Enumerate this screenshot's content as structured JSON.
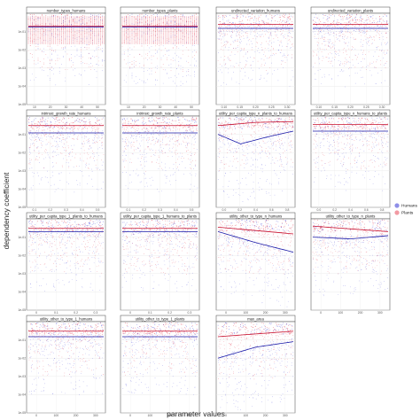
{
  "chart_data": {
    "type": "scatter",
    "title": "",
    "xlabel": "parameter values",
    "ylabel": "dependency coefficient",
    "yscale": "log",
    "ylim": [
      1e-05,
      1
    ],
    "y_ticks": [
      "1e-01",
      "1e-02",
      "1e-03",
      "1e-04",
      "1e-05"
    ],
    "grid": true,
    "legend_position": "right",
    "legend_entries": [
      {
        "name": "Humans",
        "color": "#8f8fe8"
      },
      {
        "name": "Plants",
        "color": "#f29aa3"
      }
    ],
    "colors": {
      "humans_points": "#3a3ad6",
      "plants_points": "#e0243a",
      "humans_fit": "#1a1aa8",
      "plants_fit": "#c8102e"
    },
    "panels": [
      {
        "title": "number_types_humans",
        "x_range": [
          0,
          50
        ],
        "x_ticks": [
          "10",
          "20",
          "30",
          "40",
          "50"
        ],
        "discrete": true,
        "fit": {
          "humans": [
            [
              0,
              0.18
            ],
            [
              50,
              0.18
            ]
          ],
          "plants": [
            [
              0,
              0.2
            ],
            [
              50,
              0.2
            ]
          ]
        }
      },
      {
        "title": "number_types_plants",
        "x_range": [
          0,
          50
        ],
        "x_ticks": [
          "10",
          "20",
          "30",
          "40",
          "50"
        ],
        "discrete": true,
        "fit": {
          "humans": [
            [
              0,
              0.18
            ],
            [
              50,
              0.18
            ]
          ],
          "plants": [
            [
              0,
              0.2
            ],
            [
              50,
              0.2
            ]
          ]
        }
      },
      {
        "title": "undirected_variation_humans",
        "x_range": [
          0.1,
          0.5
        ],
        "x_ticks": [
          "0.10",
          "0.15",
          "0.20",
          "0.25",
          "0.30"
        ],
        "discrete": false,
        "fit": {
          "humans": [
            [
              0.1,
              0.15
            ],
            [
              0.5,
              0.15
            ]
          ],
          "plants": [
            [
              0.1,
              0.25
            ],
            [
              0.5,
              0.25
            ]
          ]
        }
      },
      {
        "title": "undirected_variation_plants",
        "x_range": [
          0.1,
          0.5
        ],
        "x_ticks": [
          "0.10",
          "0.15",
          "0.20",
          "0.25",
          "0.30"
        ],
        "discrete": false,
        "fit": {
          "humans": [
            [
              0.1,
              0.15
            ],
            [
              0.5,
              0.15
            ]
          ],
          "plants": [
            [
              0.1,
              0.25
            ],
            [
              0.5,
              0.25
            ]
          ]
        }
      },
      {
        "title": "intrinsic_growth_rate_humans",
        "x_range": [
          0,
          1
        ],
        "x_ticks": [
          "0.1",
          "0.2",
          "0.3",
          "0.4",
          "0.5"
        ],
        "discrete": false,
        "fit": {
          "humans": [
            [
              0,
              0.12
            ],
            [
              1,
              0.12
            ]
          ],
          "plants": [
            [
              0,
              0.3
            ],
            [
              1,
              0.3
            ]
          ]
        }
      },
      {
        "title": "intrinsic_growth_rate_plants",
        "x_range": [
          0,
          1
        ],
        "x_ticks": [
          "0.1",
          "0.2",
          "0.3",
          "0.4",
          "0.5"
        ],
        "discrete": false,
        "fit": {
          "humans": [
            [
              0,
              0.12
            ],
            [
              1,
              0.12
            ]
          ],
          "plants": [
            [
              0,
              0.3
            ],
            [
              1,
              0.3
            ]
          ]
        }
      },
      {
        "title": "utility_per_capita_type_n_plants_to_humans",
        "x_range": [
          0,
          1
        ],
        "x_ticks": [
          "0.0",
          "0.2",
          "0.4",
          "0.6",
          "0.8"
        ],
        "discrete": false,
        "fit": {
          "humans": [
            [
              0,
              0.1
            ],
            [
              0.3,
              0.03
            ],
            [
              0.7,
              0.08
            ],
            [
              1,
              0.15
            ]
          ],
          "plants": [
            [
              0,
              0.3
            ],
            [
              0.5,
              0.45
            ],
            [
              1,
              0.5
            ]
          ]
        }
      },
      {
        "title": "utility_per_capita_type_n_humans_to_plants",
        "x_range": [
          0,
          1
        ],
        "x_ticks": [
          "0.0",
          "0.2",
          "0.4",
          "0.6",
          "0.8"
        ],
        "discrete": false,
        "fit": {
          "humans": [
            [
              0,
              0.15
            ],
            [
              1,
              0.15
            ]
          ],
          "plants": [
            [
              0,
              0.35
            ],
            [
              1,
              0.35
            ]
          ]
        }
      },
      {
        "title": "utility_per_capita_type_1_plants_to_humans",
        "x_range": [
          0,
          1
        ],
        "x_ticks": [
          "0",
          "0.1",
          "0.2",
          "0.3"
        ],
        "discrete": false,
        "fit": {
          "humans": [
            [
              0,
              0.2
            ],
            [
              1,
              0.2
            ]
          ],
          "plants": [
            [
              0,
              0.3
            ],
            [
              1,
              0.3
            ]
          ]
        }
      },
      {
        "title": "utility_per_capita_type_1_humans_to_plants",
        "x_range": [
          0,
          1
        ],
        "x_ticks": [
          "0",
          "0.1",
          "0.2",
          "0.3"
        ],
        "discrete": false,
        "fit": {
          "humans": [
            [
              0,
              0.2
            ],
            [
              1,
              0.2
            ]
          ],
          "plants": [
            [
              0,
              0.3
            ],
            [
              1,
              0.3
            ]
          ]
        }
      },
      {
        "title": "utility_other_to_type_n_humans",
        "x_range": [
          0,
          300
        ],
        "x_ticks": [
          "0",
          "100",
          "200",
          "300"
        ],
        "discrete": false,
        "fit": {
          "humans": [
            [
              0,
              0.2
            ],
            [
              150,
              0.05
            ],
            [
              300,
              0.015
            ]
          ],
          "plants": [
            [
              0,
              0.35
            ],
            [
              300,
              0.15
            ]
          ]
        }
      },
      {
        "title": "utility_other_to_type_n_plants",
        "x_range": [
          0,
          300
        ],
        "x_ticks": [
          "0",
          "100",
          "200",
          "300"
        ],
        "discrete": false,
        "fit": {
          "humans": [
            [
              0,
              0.1
            ],
            [
              150,
              0.08
            ],
            [
              300,
              0.12
            ]
          ],
          "plants": [
            [
              0,
              0.4
            ],
            [
              300,
              0.2
            ]
          ]
        }
      },
      {
        "title": "utility_other_to_type_1_humans",
        "x_range": [
          0,
          300
        ],
        "x_ticks": [
          "0",
          "100",
          "200",
          "300"
        ],
        "discrete": false,
        "fit": {
          "humans": [
            [
              0,
              0.15
            ],
            [
              300,
              0.15
            ]
          ],
          "plants": [
            [
              0,
              0.3
            ],
            [
              300,
              0.3
            ]
          ]
        }
      },
      {
        "title": "utility_other_to_type_1_plants",
        "x_range": [
          0,
          300
        ],
        "x_ticks": [
          "0",
          "100",
          "200",
          "300"
        ],
        "discrete": false,
        "fit": {
          "humans": [
            [
              0,
              0.15
            ],
            [
              300,
              0.15
            ]
          ],
          "plants": [
            [
              0,
              0.3
            ],
            [
              300,
              0.3
            ]
          ]
        }
      },
      {
        "title": "max_area",
        "x_range": [
          0,
          300
        ],
        "x_ticks": [
          "0",
          "100",
          "200",
          "300"
        ],
        "discrete": false,
        "fit": {
          "humans": [
            [
              0,
              0.01
            ],
            [
              150,
              0.04
            ],
            [
              300,
              0.08
            ]
          ],
          "plants": [
            [
              0,
              0.15
            ],
            [
              300,
              0.3
            ]
          ]
        }
      }
    ]
  }
}
